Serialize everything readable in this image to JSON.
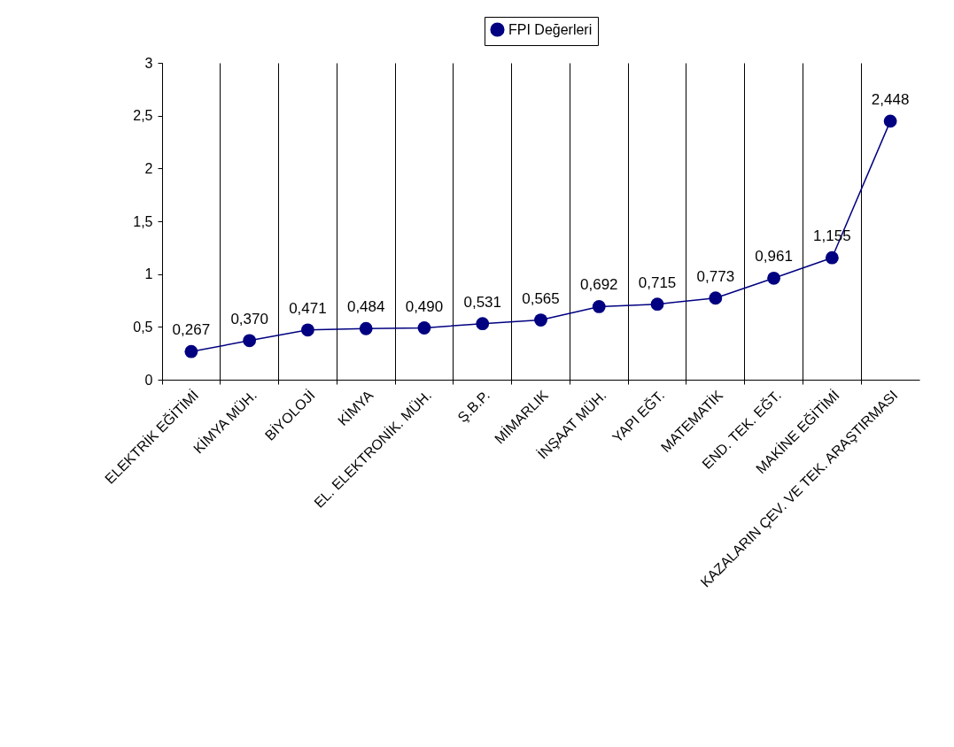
{
  "chart_data": {
    "type": "line",
    "categories": [
      "ELEKTRİK EĞİTİMİ",
      "KİMYA MÜH.",
      "BİYOLOJİ",
      "KİMYA",
      "EL. ELEKTRONİK. MÜH.",
      "Ş.B.P.",
      "MİMARLIK",
      "İNŞAAT MÜH.",
      "YAPI EĞT.",
      "MATEMATİK",
      "END. TEK. EĞT.",
      "MAKİNE EĞİTİMİ",
      "KAZALARIN ÇEV. VE TEK. ARAŞTIRMASI"
    ],
    "series": [
      {
        "name": "FPI Değerleri",
        "color": "#000080",
        "values": [
          0.267,
          0.37,
          0.471,
          0.484,
          0.49,
          0.531,
          0.565,
          0.692,
          0.715,
          0.773,
          0.961,
          1.155,
          2.448
        ],
        "value_labels": [
          "0,267",
          "0,370",
          "0,471",
          "0,484",
          "0,490",
          "0,531",
          "0,565",
          "0,692",
          "0,715",
          "0,773",
          "0,961",
          "1,155",
          "2,448"
        ]
      }
    ],
    "ylim": [
      0,
      3
    ],
    "yticks": [
      0,
      {
        "value": 0.5,
        "label": "0,5"
      },
      1,
      {
        "value": 1.5,
        "label": "1,5"
      },
      2,
      {
        "value": 2.5,
        "label": "2,5"
      },
      3
    ],
    "grid": "x",
    "legend": "top",
    "marker": "circle",
    "line_style": "solid"
  }
}
